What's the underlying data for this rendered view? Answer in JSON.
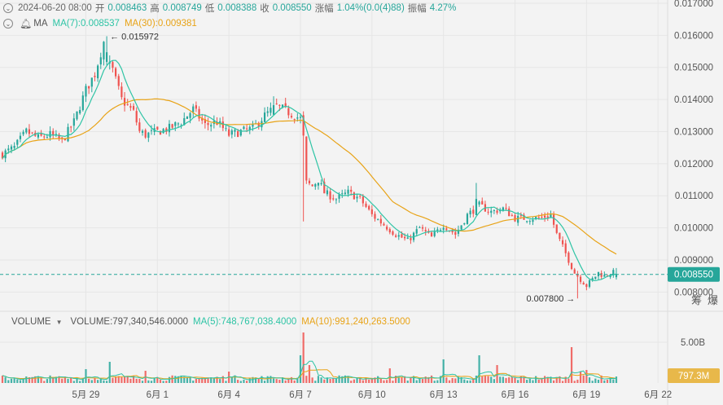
{
  "header": {
    "datetime": "2024-06-20 08:00",
    "open_label": "开",
    "open": "0.008463",
    "high_label": "高",
    "high": "0.008749",
    "low_label": "低",
    "low": "0.008388",
    "close_label": "收",
    "close": "0.008550",
    "change_label": "涨幅",
    "change": "1.04%(0.0(4)88)",
    "amplitude_label": "振幅",
    "amplitude": "4.27%"
  },
  "ma_legend": {
    "label": "MA",
    "ma7": "MA(7):0.008537",
    "ma30": "MA(30):0.009381"
  },
  "vol_legend": {
    "label": "VOLUME",
    "volume": "VOLUME:797,340,546.0000",
    "ma5": "MA(5):748,767,038.4000",
    "ma10": "MA(10):991,240,263.5000"
  },
  "toolbar": {
    "chip_label": "筹",
    "explode_label": "爆"
  },
  "colors": {
    "up": "#26a69a",
    "down": "#ef5350",
    "ma7": "#2ec4a5",
    "ma30": "#e8a317",
    "price_tag": "#26a69a",
    "vol_tag": "#e8b84a"
  },
  "chart_data": {
    "type": "candlestick",
    "price_axis": {
      "range": [
        0.0074,
        0.0171
      ],
      "ticks": [
        "0.017000",
        "0.016000",
        "0.015000",
        "0.014000",
        "0.013000",
        "0.012000",
        "0.011000",
        "0.010000",
        "0.009000",
        "0.008000"
      ]
    },
    "current_price": "0.008550",
    "annotations": {
      "high": "0.015972",
      "low": "0.007800"
    },
    "volume_axis": {
      "range": [
        0,
        6500000000
      ],
      "tick": "5.00B",
      "current": "797.3M"
    },
    "x_labels": [
      {
        "label": "5月 29",
        "index": 28
      },
      {
        "label": "6月 1",
        "index": 52
      },
      {
        "label": "6月 4",
        "index": 76
      },
      {
        "label": "6月 7",
        "index": 100
      },
      {
        "label": "6月 10",
        "index": 124
      },
      {
        "label": "6月 13",
        "index": 148
      },
      {
        "label": "6月 16",
        "index": 172
      },
      {
        "label": "6月 19",
        "index": 196
      },
      {
        "label": "6月 22",
        "index": 220
      }
    ],
    "anchors": [
      [
        0,
        0.0123
      ],
      [
        4,
        0.0125
      ],
      [
        8,
        0.013
      ],
      [
        12,
        0.0128
      ],
      [
        16,
        0.0129
      ],
      [
        20,
        0.0127
      ],
      [
        24,
        0.0133
      ],
      [
        28,
        0.0143
      ],
      [
        31,
        0.0148
      ],
      [
        34,
        0.0158
      ],
      [
        35,
        0.0152
      ],
      [
        37,
        0.0149
      ],
      [
        40,
        0.014
      ],
      [
        42,
        0.0138
      ],
      [
        44,
        0.0136
      ],
      [
        46,
        0.013
      ],
      [
        48,
        0.0129
      ],
      [
        52,
        0.013
      ],
      [
        56,
        0.0131
      ],
      [
        60,
        0.0133
      ],
      [
        64,
        0.0137
      ],
      [
        68,
        0.0132
      ],
      [
        72,
        0.0133
      ],
      [
        76,
        0.0129
      ],
      [
        80,
        0.013
      ],
      [
        84,
        0.0131
      ],
      [
        88,
        0.0135
      ],
      [
        92,
        0.0138
      ],
      [
        96,
        0.0136
      ],
      [
        100,
        0.0134
      ],
      [
        101,
        0.0128
      ],
      [
        102,
        0.0114
      ],
      [
        104,
        0.0113
      ],
      [
        106,
        0.0115
      ],
      [
        108,
        0.0111
      ],
      [
        112,
        0.0109
      ],
      [
        116,
        0.0111
      ],
      [
        120,
        0.0109
      ],
      [
        124,
        0.0104
      ],
      [
        128,
        0.0101
      ],
      [
        132,
        0.0098
      ],
      [
        136,
        0.0096
      ],
      [
        140,
        0.01
      ],
      [
        144,
        0.0097
      ],
      [
        148,
        0.0101
      ],
      [
        152,
        0.0098
      ],
      [
        156,
        0.0104
      ],
      [
        160,
        0.0107
      ],
      [
        164,
        0.0105
      ],
      [
        168,
        0.0106
      ],
      [
        172,
        0.0103
      ],
      [
        176,
        0.0103
      ],
      [
        180,
        0.0103
      ],
      [
        184,
        0.0104
      ],
      [
        186,
        0.0098
      ],
      [
        188,
        0.0094
      ],
      [
        190,
        0.009
      ],
      [
        192,
        0.0086
      ],
      [
        194,
        0.0084
      ],
      [
        196,
        0.0082
      ],
      [
        198,
        0.0084
      ],
      [
        200,
        0.0086
      ],
      [
        202,
        0.0085
      ],
      [
        204,
        0.0086
      ],
      [
        206,
        0.0086
      ]
    ],
    "spikes": [
      {
        "index": 35,
        "high": 0.015972
      },
      {
        "index": 101,
        "low": 0.0102
      },
      {
        "index": 193,
        "low": 0.0078
      },
      {
        "index": 159,
        "high": 0.0114
      },
      {
        "index": 91,
        "high": 0.0141
      }
    ],
    "volume_spikes": [
      {
        "index": 28,
        "value": 1700000000
      },
      {
        "index": 36,
        "value": 2600000000
      },
      {
        "index": 48,
        "value": 1500000000
      },
      {
        "index": 76,
        "value": 1400000000
      },
      {
        "index": 100,
        "value": 3400000000
      },
      {
        "index": 101,
        "value": 6200000000
      },
      {
        "index": 103,
        "value": 2200000000
      },
      {
        "index": 130,
        "value": 1800000000
      },
      {
        "index": 148,
        "value": 2900000000
      },
      {
        "index": 160,
        "value": 3400000000
      },
      {
        "index": 166,
        "value": 2200000000
      },
      {
        "index": 191,
        "value": 4400000000
      },
      {
        "index": 194,
        "value": 1400000000
      },
      {
        "index": 196,
        "value": 1600000000
      }
    ]
  }
}
